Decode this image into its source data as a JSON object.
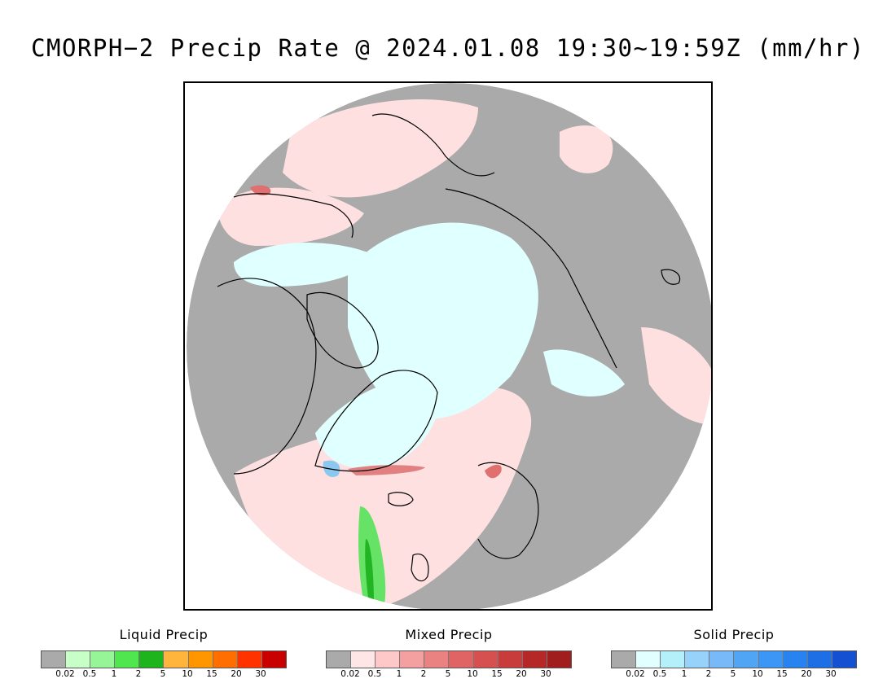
{
  "title": "CMORPH−2 Precip Rate @ 2024.01.08 19:30~19:59Z (mm/hr)",
  "map": {
    "projection": "north-polar-stereographic",
    "colors": {
      "background": "#aaaaaa",
      "land_outline": "#000000",
      "mixed_light": "#ffe0e0",
      "solid_light": "#e0ffff",
      "liquid_green": "#44dd44",
      "solid_blue": "#8ac8f0",
      "mixed_red": "#e07070"
    }
  },
  "legends": [
    {
      "title": "Liquid Precip",
      "colors": [
        "#aaaaaa",
        "#c8ffc8",
        "#96f596",
        "#50e650",
        "#1eb41e",
        "#ffb43c",
        "#ff9600",
        "#ff6e00",
        "#ff3200",
        "#c80000"
      ],
      "ticks": [
        "0.02",
        "0.5",
        "1",
        "2",
        "5",
        "10",
        "15",
        "20",
        "30"
      ]
    },
    {
      "title": "Mixed Precip",
      "colors": [
        "#aaaaaa",
        "#ffe6e6",
        "#ffc8c8",
        "#f5a0a0",
        "#eb8282",
        "#e16464",
        "#d75050",
        "#c83c3c",
        "#b42828",
        "#a01e1e"
      ],
      "ticks": [
        "0.02",
        "0.5",
        "1",
        "2",
        "5",
        "10",
        "15",
        "20",
        "30"
      ]
    },
    {
      "title": "Solid Precip",
      "colors": [
        "#aaaaaa",
        "#e1ffff",
        "#b4f0fa",
        "#96d2fa",
        "#78b9fa",
        "#50a5f5",
        "#3c96f5",
        "#2882f0",
        "#1e6ee6",
        "#1450d2"
      ],
      "ticks": [
        "0.02",
        "0.5",
        "1",
        "2",
        "5",
        "10",
        "15",
        "20",
        "30"
      ]
    }
  ]
}
